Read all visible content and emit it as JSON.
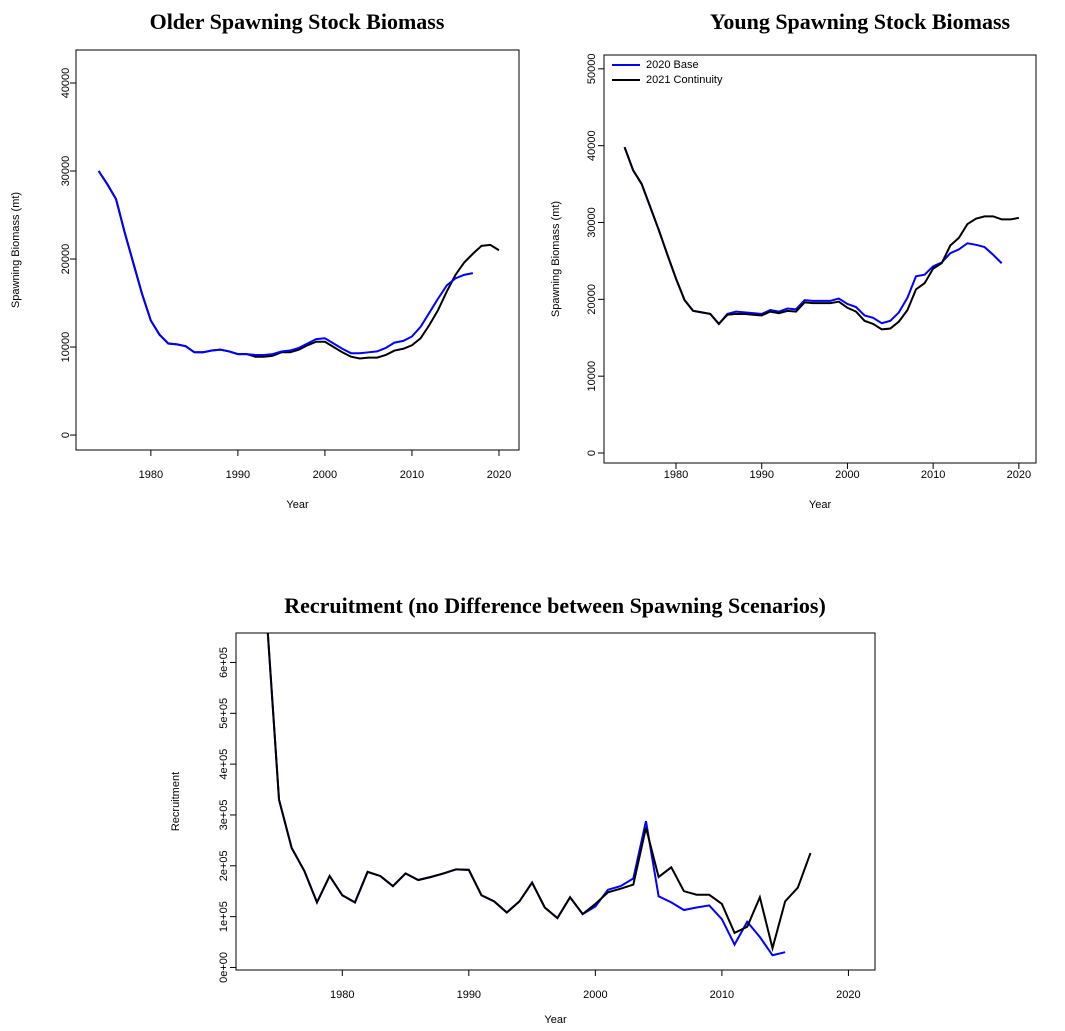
{
  "chart_data": [
    {
      "type": "line",
      "title": "Older Spawning Stock Biomass",
      "x_label": "Year",
      "y_label": "Spawning Biomass (mt)",
      "x": [
        1974,
        1975,
        1976,
        1977,
        1978,
        1979,
        1980,
        1981,
        1982,
        1983,
        1984,
        1985,
        1986,
        1987,
        1988,
        1989,
        1990,
        1991,
        1992,
        1993,
        1994,
        1995,
        1996,
        1997,
        1998,
        1999,
        2000,
        2001,
        2002,
        2003,
        2004,
        2005,
        2006,
        2007,
        2008,
        2009,
        2010,
        2011,
        2012,
        2013,
        2014,
        2015,
        2016,
        2017,
        2018,
        2019,
        2020
      ],
      "series": [
        {
          "color": "#000000",
          "values": [
            30000,
            28500,
            26800,
            23000,
            19500,
            16000,
            13000,
            11400,
            10400,
            10300,
            10100,
            9400,
            9400,
            9600,
            9700,
            9500,
            9200,
            9200,
            8900,
            8900,
            9000,
            9400,
            9400,
            9700,
            10200,
            10600,
            10600,
            10000,
            9400,
            8900,
            8700,
            8800,
            8800,
            9100,
            9600,
            9800,
            10200,
            11000,
            12500,
            14200,
            16300,
            18200,
            19600,
            20600,
            21500,
            21600,
            21000
          ]
        },
        {
          "color": "#0000ff",
          "values": [
            30000,
            28500,
            26800,
            23000,
            19500,
            16000,
            13000,
            11400,
            10400,
            10300,
            10100,
            9400,
            9400,
            9600,
            9700,
            9500,
            9200,
            9200,
            9100,
            9100,
            9200,
            9500,
            9600,
            9900,
            10400,
            10900,
            11000,
            10400,
            9800,
            9300,
            9300,
            9400,
            9500,
            9900,
            10500,
            10700,
            11200,
            12300,
            13900,
            15500,
            17000,
            17800,
            18200,
            18400,
            null,
            null,
            null
          ]
        }
      ],
      "xlim": [
        1971.4,
        2022.3
      ],
      "xticks": [
        1980,
        1990,
        2000,
        2010,
        2020
      ],
      "ylim": [
        -1700,
        43750
      ],
      "yticks": [
        0,
        10000,
        20000,
        30000,
        40000
      ]
    },
    {
      "type": "line",
      "title": "Young Spawning Stock Biomass",
      "x_label": "Year",
      "y_label": "Spawning Biomass (mt)",
      "legend": "top-left",
      "x": [
        1974,
        1975,
        1976,
        1977,
        1978,
        1979,
        1980,
        1981,
        1982,
        1983,
        1984,
        1985,
        1986,
        1987,
        1988,
        1989,
        1990,
        1991,
        1992,
        1993,
        1994,
        1995,
        1996,
        1997,
        1998,
        1999,
        2000,
        2001,
        2002,
        2003,
        2004,
        2005,
        2006,
        2007,
        2008,
        2009,
        2010,
        2011,
        2012,
        2013,
        2014,
        2015,
        2016,
        2017,
        2018,
        2019,
        2020
      ],
      "series": [
        {
          "name": "2020 Base",
          "color": "#0000ff",
          "values": [
            39800,
            36800,
            35000,
            32000,
            29000,
            25800,
            22700,
            19900,
            18500,
            18300,
            18100,
            16800,
            18100,
            18400,
            18300,
            18200,
            18100,
            18600,
            18400,
            18800,
            18700,
            19900,
            19800,
            19800,
            19800,
            20100,
            19400,
            19000,
            17900,
            17600,
            16900,
            17200,
            18300,
            20200,
            23000,
            23200,
            24300,
            24800,
            26000,
            26500,
            27300,
            27100,
            26800,
            25800,
            24700,
            null,
            null
          ]
        },
        {
          "name": "2021 Continuity",
          "color": "#000000",
          "values": [
            39800,
            36800,
            35000,
            32000,
            29000,
            25800,
            22700,
            19900,
            18500,
            18300,
            18100,
            16800,
            18000,
            18100,
            18100,
            18000,
            17900,
            18400,
            18200,
            18500,
            18400,
            19600,
            19500,
            19500,
            19500,
            19700,
            18900,
            18400,
            17200,
            16800,
            16100,
            16200,
            17100,
            18600,
            21300,
            22100,
            24000,
            24700,
            27000,
            28000,
            29800,
            30500,
            30800,
            30800,
            30400,
            30400,
            30600
          ]
        }
      ],
      "xlim": [
        1971.6,
        2022
      ],
      "xticks": [
        1980,
        1990,
        2000,
        2010,
        2020
      ],
      "ylim": [
        -1300,
        51800
      ],
      "yticks": [
        0,
        10000,
        20000,
        30000,
        40000,
        50000
      ]
    },
    {
      "type": "line",
      "title": "Recruitment (no Difference between Spawning Scenarios)",
      "x_label": "Year",
      "y_label": "Recruitment",
      "x": [
        1974,
        1975,
        1976,
        1977,
        1978,
        1979,
        1980,
        1981,
        1982,
        1983,
        1984,
        1985,
        1986,
        1987,
        1988,
        1989,
        1990,
        1991,
        1992,
        1993,
        1994,
        1995,
        1996,
        1997,
        1998,
        1999,
        2000,
        2001,
        2002,
        2003,
        2004,
        2005,
        2006,
        2007,
        2008,
        2009,
        2010,
        2011,
        2012,
        2013,
        2014,
        2015,
        2016,
        2017
      ],
      "series": [
        {
          "color": "#0000ff",
          "values": [
            700000,
            330000,
            235000,
            190000,
            128000,
            180000,
            142000,
            128000,
            188000,
            180000,
            160000,
            185000,
            172000,
            178000,
            185000,
            193000,
            192000,
            142000,
            130000,
            108000,
            130000,
            167000,
            118000,
            97000,
            138000,
            105000,
            120000,
            153000,
            160000,
            175000,
            288000,
            140000,
            128000,
            113000,
            118000,
            122000,
            95000,
            45000,
            90000,
            60000,
            24000,
            30000,
            null,
            null
          ]
        },
        {
          "color": "#000000",
          "values": [
            700000,
            330000,
            235000,
            190000,
            128000,
            180000,
            142000,
            128000,
            188000,
            180000,
            160000,
            185000,
            172000,
            178000,
            185000,
            193000,
            192000,
            142000,
            130000,
            108000,
            130000,
            167000,
            118000,
            97000,
            138000,
            105000,
            125000,
            148000,
            155000,
            163000,
            275000,
            178000,
            197000,
            150000,
            143000,
            143000,
            125000,
            68000,
            80000,
            138000,
            38000,
            130000,
            157000,
            225000
          ]
        }
      ],
      "xlim": [
        1971.6,
        2022.1
      ],
      "xticks": [
        1980,
        1990,
        2000,
        2010,
        2020
      ],
      "ylim": [
        -5000,
        658000
      ],
      "yticks": [
        {
          "value": 0,
          "label": "0e+00"
        },
        {
          "value": 100000,
          "label": "1e+05"
        },
        {
          "value": 200000,
          "label": "2e+05"
        },
        {
          "value": 300000,
          "label": "3e+05"
        },
        {
          "value": 400000,
          "label": "4e+05"
        },
        {
          "value": 500000,
          "label": "5e+05"
        },
        {
          "value": 600000,
          "label": "6e+05"
        }
      ]
    }
  ]
}
